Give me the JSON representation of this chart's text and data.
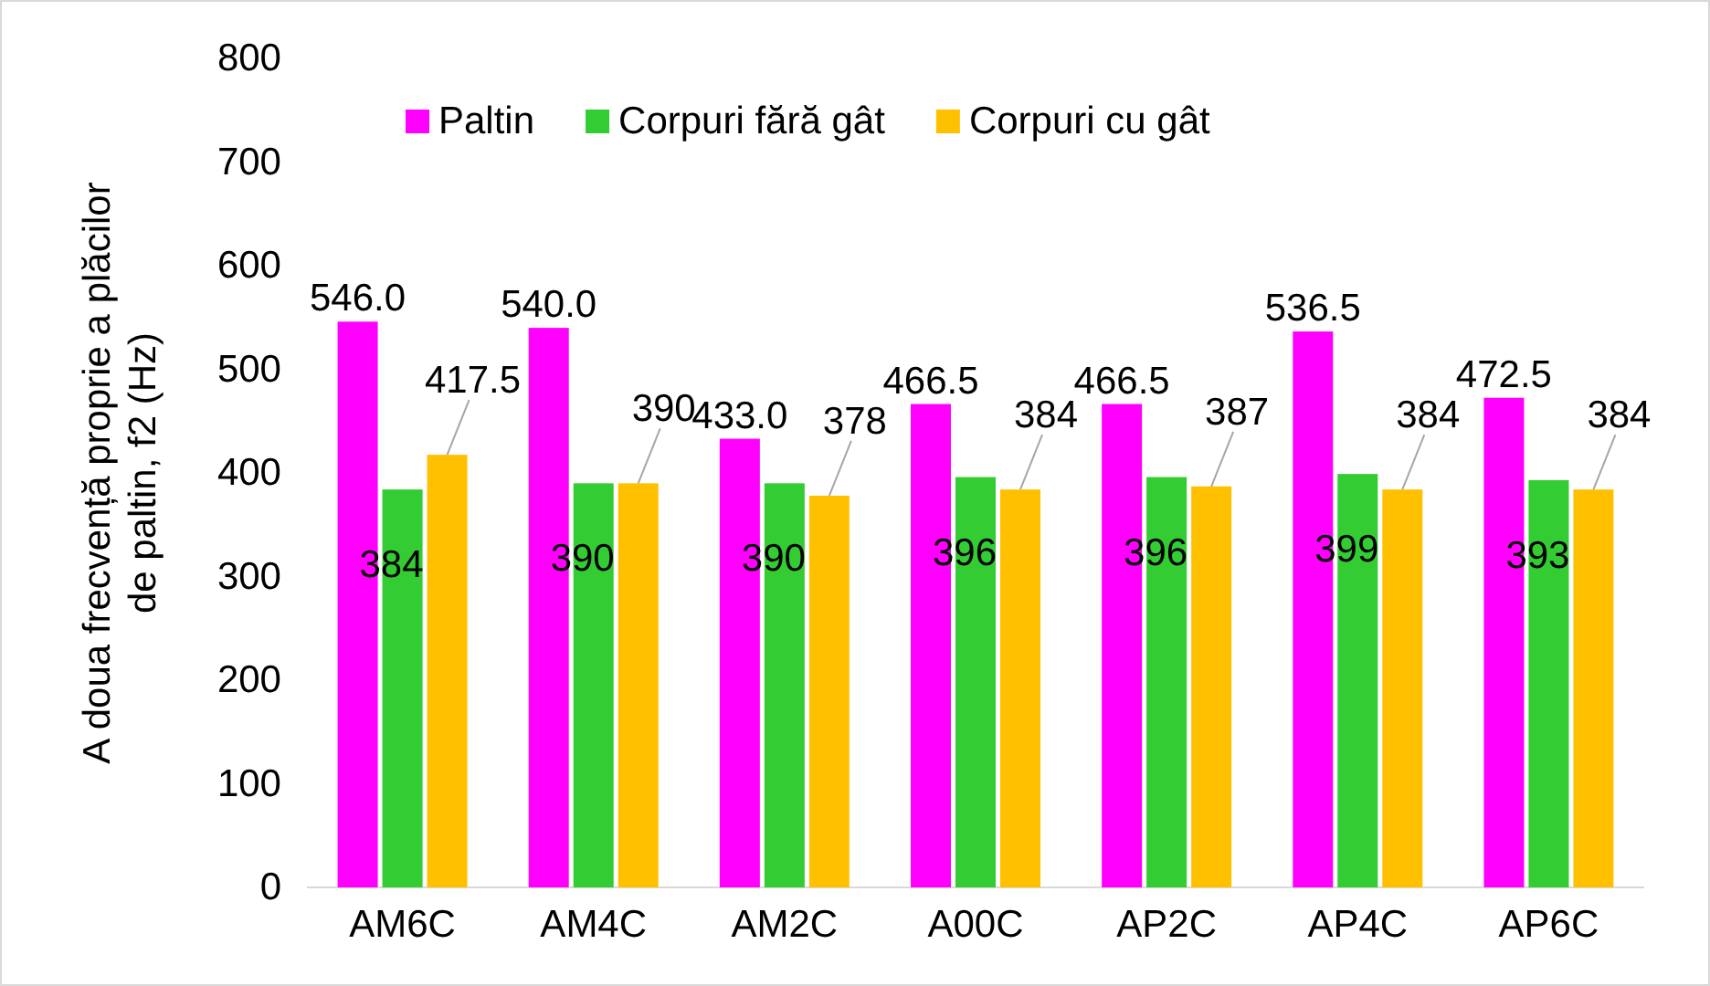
{
  "chart_data": {
    "type": "bar",
    "ylabel": "A doua frecvență proprie a plăcilor de paltin, f2 (Hz)",
    "categories": [
      "AM6C",
      "AM4C",
      "AM2C",
      "A00C",
      "AP2C",
      "AP4C",
      "AP6C"
    ],
    "series": [
      {
        "name": "Paltin",
        "color": "#ff00ff",
        "values": [
          546.0,
          540.0,
          433.0,
          466.5,
          466.5,
          536.5,
          472.5
        ],
        "value_labels": [
          "546.0",
          "540.0",
          "433.0",
          "466.5",
          "466.5",
          "536.5",
          "472.5"
        ]
      },
      {
        "name": "Corpuri fără gât",
        "color": "#33cc33",
        "values": [
          384,
          390,
          390,
          396,
          396,
          399,
          393
        ],
        "value_labels": [
          "384",
          "390",
          "390",
          "396",
          "396",
          "399",
          "393"
        ]
      },
      {
        "name": "Corpuri cu gât",
        "color": "#ffc000",
        "values": [
          417.5,
          390,
          378,
          384,
          387,
          384,
          384
        ],
        "value_labels": [
          "417.5",
          "390",
          "378",
          "384",
          "387",
          "384",
          "384"
        ]
      }
    ],
    "ylim": [
      0,
      800
    ],
    "yticks": [
      0,
      100,
      200,
      300,
      400,
      500,
      600,
      700,
      800
    ],
    "grid": false,
    "legend": "top"
  }
}
